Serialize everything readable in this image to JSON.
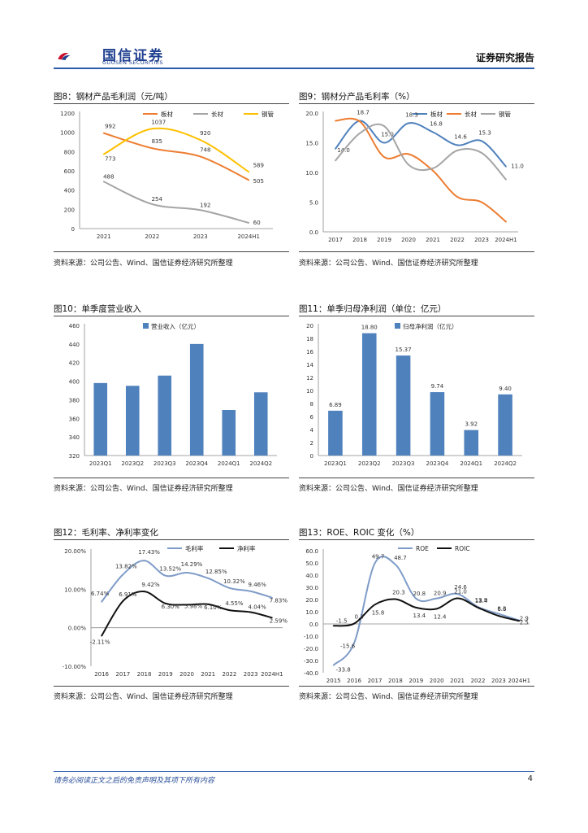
{
  "header": {
    "logo_cn": "国信证券",
    "logo_en": "GUOSEN SECURITIES",
    "report_type": "证券研究报告"
  },
  "footer": {
    "disclaimer": "请务必阅读正文之后的免责声明及其项下所有内容",
    "page_number": "4"
  },
  "colors": {
    "brand": "#2a5caa",
    "series_blue": "#4f81bd",
    "series_orange": "#ed7d31",
    "series_gray": "#a5a5a5",
    "series_yellow": "#ffc000",
    "series_light": "#7f9cc8",
    "series_black": "#111111"
  },
  "figures": [
    {
      "title": "图8：钢材产品毛利润（元/吨）",
      "source": "资料来源：公司公告、Wind、国信证券经济研究所整理"
    },
    {
      "title": "图9：钢材分产品毛利率（%）",
      "source": "资料来源：公司公告、Wind、国信证券经济研究所整理"
    },
    {
      "title": "图10：单季度营业收入",
      "source": "资料来源：公司公告、Wind、国信证券经济研究所整理"
    },
    {
      "title": "图11：单季归母净利润（单位：亿元）",
      "source": "资料来源：公司公告、Wind、国信证券经济研究所整理"
    },
    {
      "title": "图12：毛利率、净利率变化",
      "source": "资料来源：公司公告、Wind、国信证券经济研究所整理"
    },
    {
      "title": "图13：ROE、ROIC 变化（%）",
      "source": "资料来源：公司公告、Wind、国信证券经济研究所整理"
    }
  ],
  "chart_data": [
    {
      "id": "fig8",
      "type": "line",
      "title": "钢材产品毛利润（元/吨）",
      "categories": [
        "2021",
        "2022",
        "2023",
        "2024H1"
      ],
      "ylim": [
        0,
        1200
      ],
      "yticks": [
        "0",
        "200",
        "400",
        "600",
        "800",
        "1000",
        "1200"
      ],
      "ytick_values": [
        0,
        200,
        400,
        600,
        800,
        1000,
        1200
      ],
      "series": [
        {
          "name": "板材",
          "color": "#ed7d31",
          "values": [
            992,
            835,
            748,
            505
          ],
          "labels": [
            "992",
            "835",
            "748",
            "505"
          ]
        },
        {
          "name": "长材",
          "color": "#a5a5a5",
          "values": [
            488,
            254,
            192,
            60
          ],
          "labels": [
            "488",
            "254",
            "192",
            "60"
          ]
        },
        {
          "name": "钢管",
          "color": "#ffc000",
          "values": [
            773,
            1037,
            920,
            589
          ],
          "labels": [
            "773",
            "1037",
            "920",
            "589"
          ]
        }
      ]
    },
    {
      "id": "fig9",
      "type": "line",
      "title": "钢材分产品毛利率（%）",
      "categories": [
        "2017",
        "2018",
        "2019",
        "2020",
        "2021",
        "2022",
        "2023",
        "2024H1"
      ],
      "ylim": [
        0,
        20
      ],
      "yticks": [
        "0.0",
        "5.0",
        "10.0",
        "15.0",
        "20.0"
      ],
      "ytick_values": [
        0,
        5,
        10,
        15,
        20
      ],
      "series": [
        {
          "name": "板材",
          "color": "#4f81bd",
          "values": [
            14.0,
            18.7,
            15.0,
            18.3,
            16.8,
            14.6,
            15.3,
            11.0
          ],
          "labels": [
            "14.0",
            "18.7",
            "15.0",
            "18.3",
            "16.8",
            "14.6",
            "15.3",
            "11.0"
          ]
        },
        {
          "name": "长材",
          "color": "#ed7d31",
          "values": [
            18.7,
            18.6,
            12.6,
            13.1,
            10.3,
            5.9,
            5.0,
            1.7
          ],
          "labels": []
        },
        {
          "name": "钢管",
          "color": "#a5a5a5",
          "values": [
            12.0,
            16.6,
            17.8,
            11.3,
            10.7,
            13.7,
            13.3,
            8.8
          ],
          "labels": []
        }
      ]
    },
    {
      "id": "fig10",
      "type": "bar",
      "title": "单季度营业收入",
      "categories": [
        "2023Q1",
        "2023Q2",
        "2023Q3",
        "2023Q4",
        "2024Q1",
        "2024Q2"
      ],
      "ylim": [
        320,
        460
      ],
      "yticks": [
        "320",
        "340",
        "360",
        "380",
        "400",
        "420",
        "440",
        "460"
      ],
      "ytick_values": [
        320,
        340,
        360,
        380,
        400,
        420,
        440,
        460
      ],
      "series": [
        {
          "name": "营业收入（亿元）",
          "color": "#4f81bd",
          "values": [
            398,
            395,
            406,
            440,
            369,
            388
          ],
          "labels": []
        }
      ]
    },
    {
      "id": "fig11",
      "type": "bar",
      "title": "单季归母净利润（单位：亿元）",
      "categories": [
        "2023Q1",
        "2023Q2",
        "2023Q3",
        "2023Q4",
        "2024Q1",
        "2024Q2"
      ],
      "ylim": [
        0,
        20
      ],
      "yticks": [
        "0",
        "2",
        "4",
        "6",
        "8",
        "10",
        "12",
        "14",
        "16",
        "18",
        "20"
      ],
      "ytick_values": [
        0,
        2,
        4,
        6,
        8,
        10,
        12,
        14,
        16,
        18,
        20
      ],
      "series": [
        {
          "name": "归母净利润（亿元）",
          "color": "#4f81bd",
          "values": [
            6.89,
            18.8,
            15.37,
            9.74,
            3.92,
            9.4
          ],
          "labels": [
            "6.89",
            "18.80",
            "15.37",
            "9.74",
            "3.92",
            "9.40"
          ]
        }
      ]
    },
    {
      "id": "fig12",
      "type": "line",
      "title": "毛利率、净利率变化",
      "categories": [
        "2016",
        "2017",
        "2018",
        "2019",
        "2020",
        "2021",
        "2022",
        "2023",
        "2024H1"
      ],
      "ylim": [
        -10,
        20
      ],
      "yticks": [
        "-10.00%",
        "0.00%",
        "10.00%",
        "20.00%"
      ],
      "ytick_values": [
        -10,
        0,
        10,
        20
      ],
      "series": [
        {
          "name": "毛利率",
          "color": "#7f9cc8",
          "values": [
            6.74,
            13.82,
            17.43,
            13.52,
            14.29,
            12.85,
            10.32,
            9.46,
            7.83
          ],
          "labels": [
            "6.74%",
            "13.82%",
            "17.43%",
            "13.52%",
            "14.29%",
            "12.85%",
            "10.32%",
            "9.46%",
            "7.83%"
          ]
        },
        {
          "name": "净利率",
          "color": "#111111",
          "values": [
            -2.11,
            6.91,
            9.42,
            6.3,
            5.98,
            6.1,
            4.55,
            4.04,
            2.59
          ],
          "labels": [
            "-2.11%",
            "6.91%",
            "9.42%",
            "6.30%",
            "5.98%",
            "6.10%",
            "4.55%",
            "4.04%",
            "2.59%"
          ]
        }
      ]
    },
    {
      "id": "fig13",
      "type": "line",
      "title": "ROE、ROIC 变化（%）",
      "categories": [
        "2015",
        "2016",
        "2017",
        "2018",
        "2019",
        "2020",
        "2021",
        "2022",
        "2023",
        "2024H1"
      ],
      "ylim": [
        -40,
        60
      ],
      "yticks": [
        "-40.0",
        "-30.0",
        "-20.0",
        "-10.0",
        "0.0",
        "10.0",
        "20.0",
        "30.0",
        "40.0",
        "50.0",
        "60.0"
      ],
      "ytick_values": [
        -40,
        -30,
        -20,
        -10,
        0,
        10,
        20,
        30,
        40,
        50,
        60
      ],
      "series": [
        {
          "name": "ROE",
          "color": "#7f9cc8",
          "values": [
            -33.8,
            -15.6,
            49.7,
            48.7,
            20.8,
            20.9,
            24.6,
            13.9,
            8.3,
            2.9
          ],
          "labels": [
            "-33.8",
            "-15.6",
            "49.7",
            "48.7",
            "20.8",
            "20.9",
            "24.6",
            "13.9",
            "8.3",
            "2.9"
          ]
        },
        {
          "name": "ROIC",
          "color": "#111111",
          "values": [
            -1.5,
            0.3,
            15.8,
            20.3,
            13.4,
            12.4,
            21.0,
            13.4,
            6.6,
            2.5
          ],
          "labels": [
            "-1.5",
            "0.3",
            "15.8",
            "20.3",
            "13.4",
            "12.4",
            "21.0",
            "13.4",
            "6.6",
            "2.5"
          ]
        }
      ]
    }
  ]
}
